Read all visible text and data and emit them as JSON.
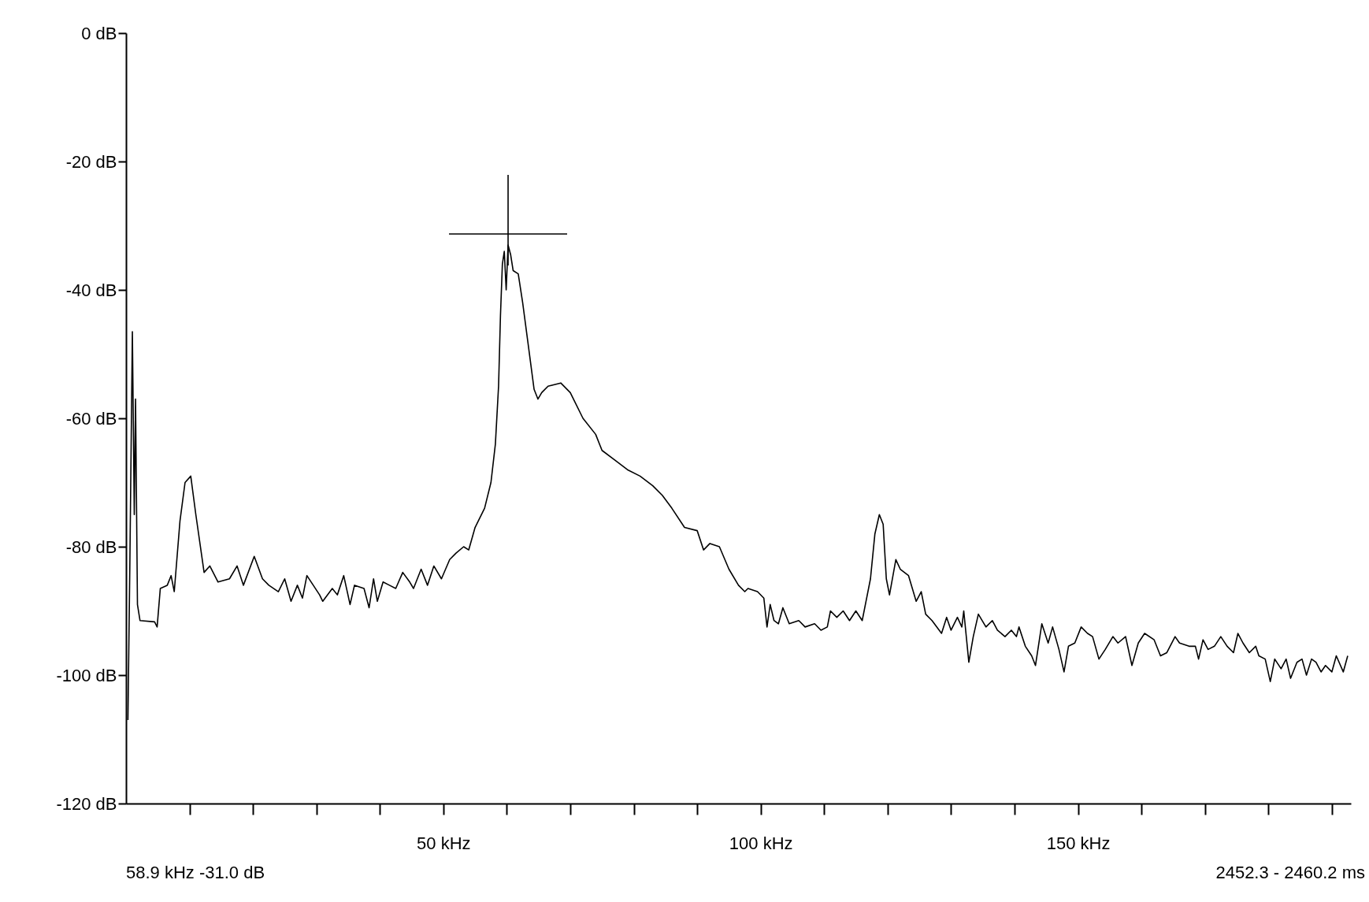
{
  "chart_data": {
    "type": "line",
    "x": [
      0.3,
      0.6,
      1.0,
      1.3,
      1.5,
      1.8,
      2.2,
      4.5,
      4.9,
      5.4,
      6.5,
      7.1,
      7.6,
      8.5,
      9.3,
      10.2,
      11.0,
      12.3,
      13.2,
      14.5,
      16.3,
      17.5,
      18.5,
      20.2,
      21.5,
      22.5,
      24,
      25,
      26,
      27,
      27.8,
      28.5,
      29.5,
      30.5,
      31,
      32.5,
      33.3,
      34.3,
      35.3,
      36,
      37.5,
      38.3,
      39,
      39.6,
      40.5,
      41.5,
      42.5,
      43.6,
      44.7,
      45.3,
      46.5,
      47.5,
      48.5,
      49.7,
      51,
      52,
      53.2,
      54,
      55,
      56.5,
      57.5,
      58.2,
      58.7,
      59.0,
      59.3,
      59.6,
      59.9,
      60.2,
      60.6,
      61,
      61.8,
      62.5,
      63.3,
      64.3,
      64.9,
      65.5,
      66.5,
      68.5,
      70,
      72,
      74,
      75,
      77,
      79,
      81,
      83,
      84.5,
      86,
      88,
      90,
      91,
      92,
      93.5,
      95,
      96.5,
      97.5,
      98,
      99.5,
      100.5,
      101,
      101.5,
      102.1,
      102.8,
      103.5,
      104.5,
      106,
      107,
      108.5,
      109.5,
      110.5,
      111,
      112,
      113,
      114,
      115,
      116,
      117.3,
      118,
      118.7,
      119.3,
      119.8,
      120.3,
      121.3,
      122,
      123.3,
      124.5,
      125.3,
      126,
      127,
      128.5,
      129.3,
      130,
      131,
      131.7,
      132,
      132.8,
      133.5,
      134.3,
      135.5,
      136.5,
      137.3,
      138.5,
      139.5,
      140.3,
      140.7,
      141.7,
      142.7,
      143.3,
      144.3,
      145.3,
      146,
      147,
      147.8,
      148.5,
      149.5,
      150.5,
      151.5,
      152.3,
      153.3,
      154.3,
      155.5,
      156.3,
      157.5,
      158.5,
      159.5,
      160.5,
      162,
      163,
      164,
      165.3,
      166,
      167.5,
      168.5,
      169,
      169.7,
      170.5,
      171.5,
      172.5,
      173.5,
      174.5,
      175.2,
      176,
      177,
      178,
      178.5,
      179.5,
      180.3,
      181,
      182,
      182.8,
      183.5,
      184.5,
      185.3,
      186,
      186.8,
      187.5,
      188.3,
      189,
      190,
      190.7,
      191.8,
      192.5
    ],
    "series": [
      {
        "color": "#000000",
        "values": [
          -107,
          -83,
          -46.5,
          -75,
          -57,
          -89,
          -91.5,
          -91.7,
          -92.5,
          -86.5,
          -86,
          -84.5,
          -87,
          -76,
          -70,
          -69,
          -75,
          -84,
          -83,
          -85.5,
          -85,
          -83,
          -86,
          -81.5,
          -85,
          -86,
          -87,
          -85,
          -88.5,
          -86,
          -88,
          -84.5,
          -86,
          -87.5,
          -88.5,
          -86.5,
          -87.5,
          -84.5,
          -89,
          -86,
          -86.5,
          -89.5,
          -85,
          -88.5,
          -85.5,
          -86,
          -86.5,
          -84,
          -85.5,
          -86.5,
          -83.5,
          -86,
          -83,
          -85,
          -82,
          -81,
          -80,
          -80.5,
          -77,
          -74,
          -70,
          -64,
          -55,
          -44,
          -36,
          -34,
          -40,
          -33,
          -34.5,
          -37,
          -37.5,
          -42,
          -48,
          -55.5,
          -57,
          -56,
          -55,
          -54.5,
          -56,
          -60,
          -62.5,
          -65,
          -66.5,
          -68,
          -69,
          -70.5,
          -72,
          -74,
          -77,
          -77.5,
          -80.5,
          -79.5,
          -80,
          -83.5,
          -86,
          -87,
          -86.5,
          -87,
          -88,
          -92.5,
          -89,
          -91.5,
          -92,
          -89.5,
          -92,
          -91.5,
          -92.5,
          -92,
          -93,
          -92.5,
          -90,
          -91,
          -90,
          -91.5,
          -90,
          -91.5,
          -85,
          -78,
          -75,
          -76.5,
          -85,
          -87.5,
          -82,
          -83.5,
          -84.5,
          -88.5,
          -87,
          -90.5,
          -91.5,
          -93.5,
          -91,
          -93,
          -91,
          -92.5,
          -90,
          -98,
          -94,
          -90.5,
          -92.5,
          -91.5,
          -93,
          -94,
          -93,
          -94,
          -92.5,
          -95.5,
          -97,
          -98.5,
          -92,
          -95,
          -92.5,
          -96,
          -99.5,
          -95.5,
          -95,
          -92.5,
          -93.5,
          -94,
          -97.5,
          -96,
          -94,
          -95,
          -94,
          -98.5,
          -95,
          -93.5,
          -94.5,
          -97,
          -96.5,
          -94,
          -95,
          -95.5,
          -95.5,
          -97.5,
          -94.5,
          -96,
          -95.5,
          -94,
          -95.5,
          -96.5,
          -93.5,
          -95,
          -96.5,
          -95.5,
          -97,
          -97.5,
          -101,
          -97.5,
          -99,
          -97.5,
          -100.5,
          -98,
          -97.5,
          -100,
          -97.5,
          -98,
          -99.5,
          -98.5,
          -99.5,
          -97,
          -99.5,
          -97
        ]
      }
    ],
    "xlim": [
      0,
      193
    ],
    "xticks": [
      {
        "value": 10,
        "label": null
      },
      {
        "value": 20,
        "label": null
      },
      {
        "value": 30,
        "label": null
      },
      {
        "value": 40,
        "label": null
      },
      {
        "value": 50,
        "label": "50 kHz"
      },
      {
        "value": 60,
        "label": null
      },
      {
        "value": 70,
        "label": null
      },
      {
        "value": 80,
        "label": null
      },
      {
        "value": 90,
        "label": null
      },
      {
        "value": 100,
        "label": "100 kHz"
      },
      {
        "value": 110,
        "label": null
      },
      {
        "value": 120,
        "label": null
      },
      {
        "value": 130,
        "label": null
      },
      {
        "value": 140,
        "label": null
      },
      {
        "value": 150,
        "label": "150 kHz"
      },
      {
        "value": 160,
        "label": null
      },
      {
        "value": 170,
        "label": null
      },
      {
        "value": 180,
        "label": null
      },
      {
        "value": 190,
        "label": null
      }
    ],
    "ylim": [
      -120,
      0
    ],
    "yticks": [
      {
        "value": 0,
        "label": "0 dB"
      },
      {
        "value": -20,
        "label": "-20 dB"
      },
      {
        "value": -40,
        "label": "-40 dB"
      },
      {
        "value": -60,
        "label": "-60 dB"
      },
      {
        "value": -80,
        "label": "-80 dB"
      },
      {
        "value": -100,
        "label": "-100 dB"
      },
      {
        "value": -120,
        "label": "-120 dB"
      }
    ],
    "annotations": [
      "58.9 kHz -31.0 dB",
      "2452.3 - 2460.2 ms"
    ]
  }
}
